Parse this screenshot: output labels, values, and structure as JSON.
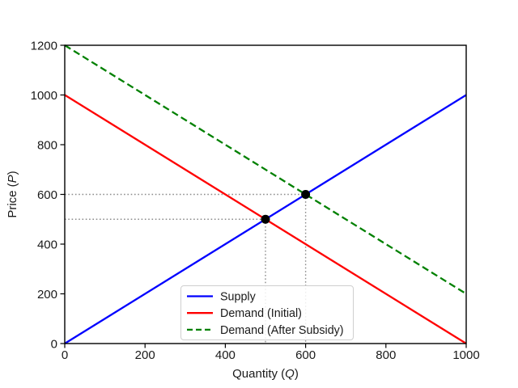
{
  "figure": {
    "background_color": "#ffffff",
    "axes_border_color": "#000000",
    "tick_label_color": "#1a1a1a"
  },
  "chart_data": {
    "type": "line",
    "title": "",
    "xlabel": {
      "prefix": "Quantity (",
      "var": "Q",
      "suffix": ")"
    },
    "ylabel": {
      "prefix": "Price (",
      "var": "P",
      "suffix": ")"
    },
    "xlim": [
      0,
      1000
    ],
    "ylim": [
      0,
      1200
    ],
    "xticks": [
      "0",
      "200",
      "400",
      "600",
      "800",
      "1000"
    ],
    "xtick_values": [
      0,
      200,
      400,
      600,
      800,
      1000
    ],
    "yticks": [
      "0",
      "200",
      "400",
      "600",
      "800",
      "1000",
      "1200"
    ],
    "ytick_values": [
      0,
      200,
      400,
      600,
      800,
      1000,
      1200
    ],
    "grid": false,
    "series": [
      {
        "name": "Supply",
        "color": "#0000ff",
        "style": "solid",
        "points": [
          [
            0,
            0
          ],
          [
            1000,
            1000
          ]
        ]
      },
      {
        "name": "Demand (Initial)",
        "color": "#ff0000",
        "style": "solid",
        "points": [
          [
            0,
            1000
          ],
          [
            1000,
            0
          ]
        ]
      },
      {
        "name": "Demand (After Subsidy)",
        "color": "#008000",
        "style": "dashed",
        "points": [
          [
            0,
            1200
          ],
          [
            1000,
            200
          ]
        ]
      }
    ],
    "equilibrium_points": [
      {
        "x": 500,
        "y": 500
      },
      {
        "x": 600,
        "y": 600
      }
    ],
    "marker_color": "#000000",
    "guide_line_color": "#8c8c8c",
    "legend": {
      "position": "lower center",
      "entries": [
        "Supply",
        "Demand (Initial)",
        "Demand (After Subsidy)"
      ],
      "border_color": "#cfcfcf",
      "background_color": "#ffffff"
    }
  }
}
